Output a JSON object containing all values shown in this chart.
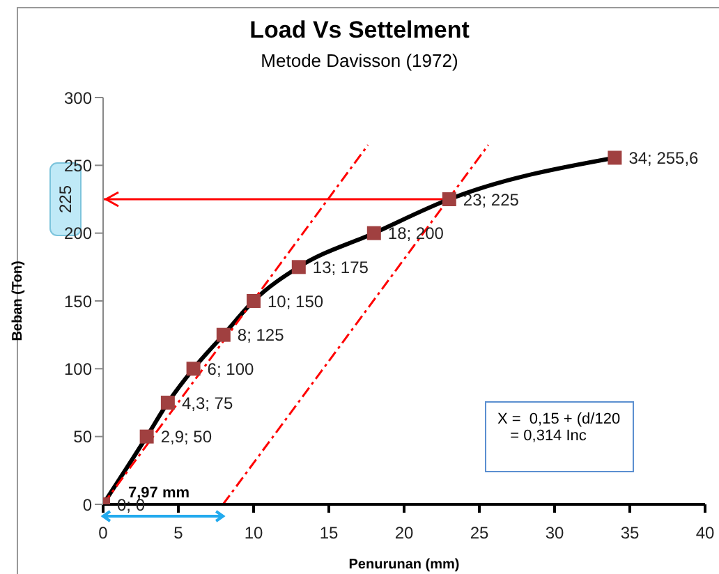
{
  "chart_data": {
    "type": "line",
    "title": "Load Vs Settelment",
    "subtitle": "Metode Davisson (1972)",
    "xlabel": "Penurunan (mm)",
    "ylabel": "Beban (Ton)",
    "xlim": [
      0,
      40
    ],
    "xticks": [
      0,
      5,
      10,
      15,
      20,
      25,
      30,
      35,
      40
    ],
    "ylim": [
      0,
      300
    ],
    "yticks": [
      0,
      50,
      100,
      150,
      200,
      250,
      300
    ],
    "grid": false,
    "series": [
      {
        "type": "line",
        "color": "#000000",
        "marker": "square",
        "colors": [
          "#a04040",
          "#a04040",
          "#a04040",
          "#a04040",
          "#a04040",
          "#a04040",
          "#a04040",
          "#a04040",
          "#a04040",
          "#a04040"
        ],
        "x": [
          0,
          2.9,
          4.3,
          6,
          8,
          10,
          13,
          18,
          23,
          34
        ],
        "values": [
          0,
          50,
          75,
          100,
          125,
          150,
          175,
          200,
          225,
          255.6
        ],
        "value_labels": [
          "0; 0",
          "2,9; 50",
          "4,3; 75",
          "6; 100",
          "8; 125",
          "10; 150",
          "13; 175",
          "18; 200",
          "23; 225",
          "34; 255,6"
        ]
      },
      {
        "type": "line",
        "color": "#ff0000",
        "line_style": "dashed",
        "marker": "none",
        "x": [
          0,
          17.6
        ],
        "values": [
          0,
          265
        ]
      },
      {
        "type": "line",
        "color": "#ff0000",
        "line_style": "dashed",
        "marker": "none",
        "x": [
          7.97,
          25.6
        ],
        "values": [
          0,
          265
        ]
      }
    ],
    "ref_lines": [
      {
        "axis": "y",
        "value": 225,
        "label": "225",
        "color": "#ff0000"
      }
    ],
    "annotations": [
      "7,97 mm",
      "X =  0,15 + (d/120\n   = 0,314 Inc"
    ]
  }
}
